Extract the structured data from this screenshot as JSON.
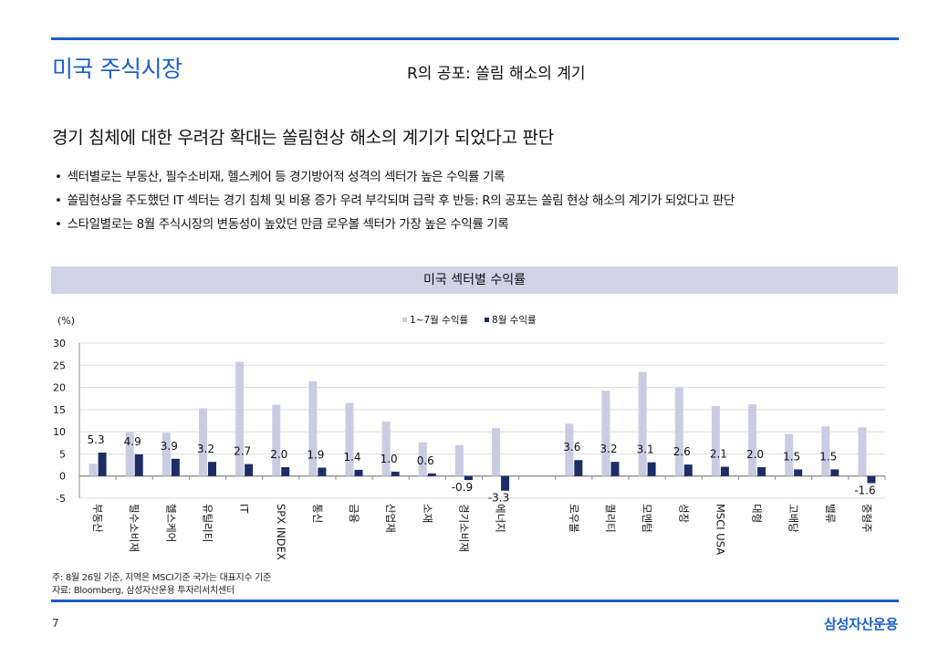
{
  "header": {
    "section_title": "미국 주식시장",
    "page_subtitle": "R의 공포: 쏠림 해소의 계기"
  },
  "headline": "경기 침체에 대한 우려감 확대는 쏠림현상 해소의 계기가 되었다고 판단",
  "bullets": [
    "섹터별로는 부동산, 필수소비재, 헬스케어 등 경기방어적 성격의 섹터가 높은 수익률 기록",
    "쏠림현상을 주도했던 IT 섹터는 경기 침체 및 비용 증가 우려 부각되며 급락 후 반등: R의 공포는 쏠림 현상 해소의 계기가 되었다고 판단",
    "스타일별로는 8월 주식시장의 변동성이 높았던 만큼 로우볼 섹터가 가장 높은 수익률 기록"
  ],
  "chart_banner": "미국 섹터별 수익률",
  "chart_data": {
    "type": "bar",
    "title": "미국 섹터별 수익률",
    "ylabel": "(%)",
    "ylim": [
      -5,
      30
    ],
    "yticks": [
      -5,
      0,
      5,
      10,
      15,
      20,
      25,
      30
    ],
    "grid": true,
    "legend_position": "top-center",
    "categories": [
      "부동산",
      "필수소비재",
      "헬스케어",
      "유틸리티",
      "IT",
      "SPX INDEX",
      "통신",
      "금융",
      "산업재",
      "소재",
      "경기소비재",
      "에너지",
      "",
      "로우볼",
      "퀄리티",
      "모멘텀",
      "성장",
      "MSCI USA",
      "대형",
      "고배당",
      "밸류",
      "중형주"
    ],
    "series": [
      {
        "name": "1~7월 수익률",
        "color": "#c9cde3",
        "values": [
          2.8,
          9.9,
          9.8,
          15.3,
          25.8,
          16.1,
          21.4,
          16.5,
          12.3,
          7.6,
          7.0,
          10.8,
          null,
          11.8,
          19.3,
          23.5,
          20.0,
          15.8,
          16.2,
          9.5,
          11.2,
          11.0
        ]
      },
      {
        "name": "8월 수익률",
        "color": "#1c2d66",
        "values": [
          5.3,
          4.9,
          3.9,
          3.2,
          2.7,
          2.0,
          1.9,
          1.4,
          1.0,
          0.6,
          -0.9,
          -3.3,
          null,
          3.6,
          3.2,
          3.1,
          2.6,
          2.1,
          2.0,
          1.5,
          1.5,
          -1.6
        ]
      }
    ],
    "data_labels": [
      "5.3",
      "4.9",
      "3.9",
      "3.2",
      "2.7",
      "2.0",
      "1.9",
      "1.4",
      "1.0",
      "0.6",
      "-0.9",
      "-3.3",
      "",
      "3.6",
      "3.2",
      "3.1",
      "2.6",
      "2.1",
      "2.0",
      "1.5",
      "1.5",
      "-1.6"
    ]
  },
  "notes": [
    "주: 8월 26일 기준, 지역은 MSCI기준 국가는 대표지수 기준",
    "자료: Bloomberg, 삼성자산운용 투자리서치센터"
  ],
  "footer": {
    "page_number": "7",
    "brand": "삼성자산운용"
  }
}
